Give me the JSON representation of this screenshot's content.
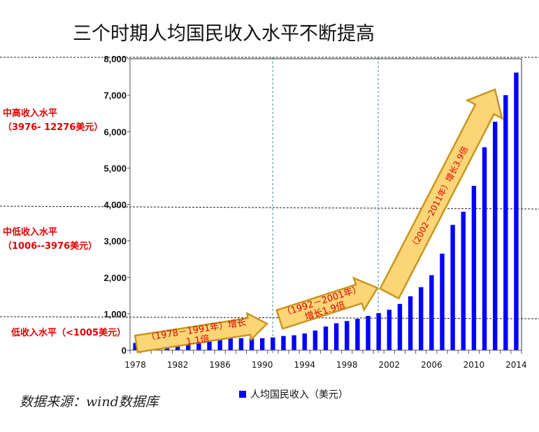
{
  "title": "三个时期人均国民收入水平不断提高",
  "levels": [
    {
      "name": "中高收入水平",
      "range": "（3976- 12276美元）"
    },
    {
      "name": "中低收入水平",
      "range": "（1006--3976美元）"
    },
    {
      "name": "低收入水平（<1005美元）",
      "range": ""
    }
  ],
  "source": "数据来源：wind数据库",
  "colors": {
    "bar": "#0000ff",
    "arrow_fill": "#fcd577",
    "arrow_stroke": "#c8961e",
    "label": "#e00000"
  },
  "annotations": [
    {
      "line1": "（1978－1991年）增长",
      "line2": "1.1倍"
    },
    {
      "line1": "（1992－2001年）",
      "line2": "增长1.9倍"
    },
    {
      "line1": "（2002－2011年）增长3.9倍",
      "line2": ""
    }
  ],
  "chart_data": {
    "type": "bar",
    "title": "三个时期人均国民收入水平不断提高",
    "legend": "人均国民收入（美元）",
    "legend_position": "bottom",
    "x": [
      1978,
      1979,
      1980,
      1981,
      1982,
      1983,
      1984,
      1985,
      1986,
      1987,
      1988,
      1989,
      1990,
      1991,
      1992,
      1993,
      1994,
      1995,
      1996,
      1997,
      1998,
      1999,
      2000,
      2001,
      2002,
      2003,
      2004,
      2005,
      2006,
      2007,
      2008,
      2009,
      2010,
      2011,
      2012,
      2013,
      2014
    ],
    "values": [
      200,
      210,
      220,
      220,
      230,
      260,
      300,
      310,
      310,
      330,
      330,
      320,
      330,
      350,
      390,
      410,
      460,
      540,
      650,
      740,
      800,
      860,
      940,
      1020,
      1110,
      1270,
      1480,
      1730,
      2060,
      2650,
      3440,
      3800,
      4510,
      5570,
      6270,
      7000,
      7620
    ],
    "xticks": [
      "1978",
      "1982",
      "1986",
      "1990",
      "1994",
      "1998",
      "2002",
      "2006",
      "2010",
      "2014"
    ],
    "yticks": [
      "0",
      "1,000",
      "2,000",
      "3,000",
      "4,000",
      "5,000",
      "6,000",
      "7,000",
      "8,000"
    ],
    "ylim": [
      0,
      8000
    ],
    "xlabel": "",
    "ylabel": ""
  }
}
